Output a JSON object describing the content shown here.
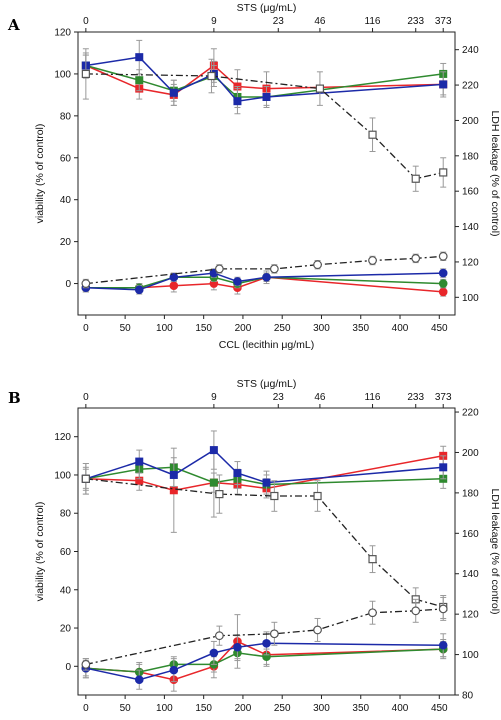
{
  "colors": {
    "red": "#e8262a",
    "green": "#2f8a2f",
    "blue": "#1c2aa8",
    "open": "#555555",
    "error": "#999999"
  },
  "chart_data": [
    {
      "panel": "A",
      "type": "line",
      "xlabel_bottom": "CCL (lecithin μg/mL)",
      "xlabel_top": "STS (μg/mL)",
      "ylabel_left": "viability (% of control)",
      "ylabel_right": "LDH leakage (% of control)",
      "xlim": [
        -10,
        470
      ],
      "ylim_left": [
        -15,
        120
      ],
      "ylim_right": [
        90,
        250
      ],
      "x_ticks": [
        0,
        50,
        100,
        150,
        200,
        250,
        300,
        350,
        400,
        450
      ],
      "y_ticks_left": [
        0,
        20,
        40,
        60,
        80,
        100,
        120
      ],
      "y_ticks_right": [
        100,
        120,
        140,
        160,
        180,
        200,
        220,
        240
      ],
      "top_ticks": [
        {
          "x": 0,
          "label": "0"
        },
        {
          "x": 163,
          "label": "9"
        },
        {
          "x": 245,
          "label": "23"
        },
        {
          "x": 298,
          "label": "46"
        },
        {
          "x": 365,
          "label": "116"
        },
        {
          "x": 420,
          "label": "233"
        },
        {
          "x": 455,
          "label": "373"
        }
      ],
      "series": [
        {
          "color": "red",
          "marker": "square",
          "style": "solid",
          "axis": "left",
          "x": [
            0,
            68,
            112,
            163,
            193,
            230,
            455
          ],
          "y": [
            104,
            93,
            90,
            104,
            94,
            93,
            95
          ],
          "err": [
            5,
            5,
            5,
            8,
            8,
            8,
            5
          ]
        },
        {
          "color": "green",
          "marker": "square",
          "style": "solid",
          "axis": "left",
          "x": [
            0,
            68,
            112,
            163,
            193,
            230,
            455
          ],
          "y": [
            104,
            97,
            92,
            99,
            89,
            89,
            100
          ],
          "err": [
            5,
            5,
            5,
            5,
            5,
            5,
            5
          ]
        },
        {
          "color": "blue",
          "marker": "square",
          "style": "solid",
          "axis": "left",
          "x": [
            0,
            68,
            112,
            163,
            193,
            230,
            455
          ],
          "y": [
            104,
            108,
            91,
            100,
            87,
            89,
            95
          ],
          "err": [
            6,
            8,
            6,
            6,
            6,
            5,
            6
          ]
        },
        {
          "color": "open",
          "marker": "open-square",
          "style": "dashdot",
          "axis": "left",
          "x": [
            0,
            160,
            298,
            365,
            420,
            455
          ],
          "y": [
            100,
            99,
            93,
            71,
            50,
            53
          ],
          "err": [
            12,
            8,
            8,
            8,
            6,
            7
          ]
        },
        {
          "color": "red",
          "marker": "circle",
          "style": "solid",
          "axis": "left",
          "x": [
            0,
            68,
            112,
            163,
            193,
            230,
            455
          ],
          "y": [
            -2,
            -2,
            -1,
            0,
            -2,
            3,
            -4
          ],
          "err": [
            2,
            2,
            3,
            3,
            3,
            3,
            2
          ]
        },
        {
          "color": "green",
          "marker": "circle",
          "style": "solid",
          "axis": "left",
          "x": [
            0,
            68,
            112,
            163,
            193,
            230,
            455
          ],
          "y": [
            -2,
            -2,
            3,
            3,
            0,
            3,
            0
          ],
          "err": [
            2,
            2,
            2,
            2,
            2,
            2,
            2
          ]
        },
        {
          "color": "blue",
          "marker": "circle",
          "style": "solid",
          "axis": "left",
          "x": [
            0,
            68,
            112,
            163,
            193,
            230,
            455
          ],
          "y": [
            -2,
            -3,
            3,
            5,
            1,
            3,
            5
          ],
          "err": [
            2,
            2,
            2,
            2,
            2,
            2,
            2
          ]
        },
        {
          "color": "open",
          "marker": "open-circle",
          "style": "dashdot",
          "axis": "left",
          "x": [
            0,
            170,
            240,
            295,
            365,
            420,
            455
          ],
          "y": [
            0,
            7,
            7,
            9,
            11,
            12,
            13
          ],
          "err": [
            2,
            2,
            2,
            2,
            2,
            2,
            2
          ]
        }
      ]
    },
    {
      "panel": "B",
      "type": "line",
      "xlabel_bottom": "CCL (lecithin μg/mL)",
      "xlabel_top": "STS (μg/mL)",
      "ylabel_left": "viability (% of control)",
      "ylabel_right": "LDH leakage (% of control)",
      "xlim": [
        -10,
        470
      ],
      "ylim_left": [
        -15,
        135
      ],
      "ylim_right": [
        80,
        222
      ],
      "x_ticks": [
        0,
        50,
        100,
        150,
        200,
        250,
        300,
        350,
        400,
        450
      ],
      "y_ticks_left": [
        0,
        20,
        40,
        60,
        80,
        100,
        120
      ],
      "y_ticks_right": [
        80,
        100,
        120,
        140,
        160,
        180,
        200,
        220
      ],
      "top_ticks": [
        {
          "x": 0,
          "label": "0"
        },
        {
          "x": 163,
          "label": "9"
        },
        {
          "x": 245,
          "label": "23"
        },
        {
          "x": 298,
          "label": "46"
        },
        {
          "x": 365,
          "label": "116"
        },
        {
          "x": 420,
          "label": "233"
        },
        {
          "x": 455,
          "label": "373"
        }
      ],
      "series": [
        {
          "color": "red",
          "marker": "square",
          "style": "solid",
          "axis": "left",
          "x": [
            0,
            68,
            112,
            163,
            193,
            230,
            455
          ],
          "y": [
            98,
            97,
            92,
            96,
            95,
            93,
            110
          ],
          "err": [
            8,
            5,
            22,
            18,
            5,
            5,
            5
          ]
        },
        {
          "color": "green",
          "marker": "square",
          "style": "solid",
          "axis": "left",
          "x": [
            0,
            68,
            112,
            163,
            193,
            230,
            455
          ],
          "y": [
            98,
            103,
            104,
            96,
            98,
            95,
            98
          ],
          "err": [
            5,
            5,
            5,
            5,
            5,
            5,
            5
          ]
        },
        {
          "color": "blue",
          "marker": "square",
          "style": "solid",
          "axis": "left",
          "x": [
            0,
            68,
            112,
            163,
            193,
            230,
            455
          ],
          "y": [
            98,
            107,
            100,
            113,
            101,
            96,
            104
          ],
          "err": [
            6,
            6,
            6,
            10,
            6,
            6,
            6
          ]
        },
        {
          "color": "open",
          "marker": "open-square",
          "style": "dashdot",
          "axis": "left",
          "x": [
            0,
            170,
            240,
            295,
            365,
            420,
            455
          ],
          "y": [
            98,
            90,
            89,
            89,
            56,
            35,
            31
          ],
          "err": [
            8,
            10,
            8,
            8,
            7,
            6,
            6
          ]
        },
        {
          "color": "red",
          "marker": "circle",
          "style": "solid",
          "axis": "left",
          "x": [
            0,
            68,
            112,
            163,
            193,
            230,
            455
          ],
          "y": [
            -1,
            -3,
            -7,
            0,
            13,
            6,
            9
          ],
          "err": [
            5,
            5,
            6,
            6,
            14,
            6,
            5
          ]
        },
        {
          "color": "green",
          "marker": "circle",
          "style": "solid",
          "axis": "left",
          "x": [
            0,
            68,
            112,
            163,
            193,
            230,
            455
          ],
          "y": [
            -1,
            -3,
            1,
            1,
            7,
            5,
            9
          ],
          "err": [
            4,
            4,
            4,
            4,
            4,
            4,
            4
          ]
        },
        {
          "color": "blue",
          "marker": "circle",
          "style": "solid",
          "axis": "left",
          "x": [
            0,
            68,
            112,
            163,
            193,
            230,
            455
          ],
          "y": [
            -1,
            -7,
            -2,
            7,
            10,
            12,
            11
          ],
          "err": [
            5,
            5,
            6,
            6,
            6,
            6,
            6
          ]
        },
        {
          "color": "open",
          "marker": "open-circle",
          "style": "dashdot",
          "axis": "left",
          "x": [
            0,
            170,
            240,
            295,
            365,
            420,
            455
          ],
          "y": [
            1,
            16,
            17,
            19,
            28,
            29,
            30
          ],
          "err": [
            3,
            5,
            6,
            6,
            6,
            6,
            6
          ]
        }
      ]
    }
  ]
}
